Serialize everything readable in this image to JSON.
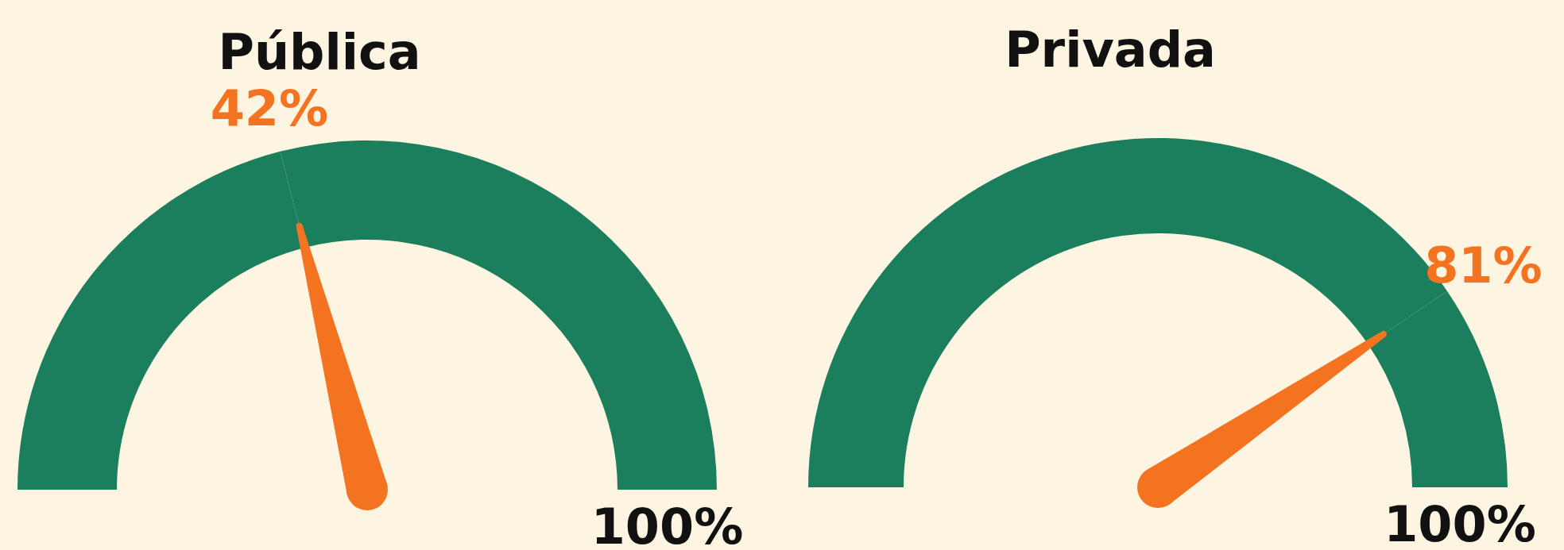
{
  "chart_data": [
    {
      "type": "donut",
      "title": "Pública",
      "categories": [
        "42%",
        null
      ],
      "values": [
        42,
        58
      ],
      "colors": [
        "#1b7f5e",
        "#1b7f5e"
      ],
      "needle": "42%",
      "annotations": [
        "100%"
      ]
    },
    {
      "type": "donut",
      "title": "Privada",
      "categories": [
        "81%",
        null
      ],
      "values": [
        81,
        19
      ],
      "colors": [
        "#1b7f5e",
        "#1b7f5e"
      ],
      "needle": "81%",
      "annotations": [
        "100%"
      ]
    }
  ]
}
